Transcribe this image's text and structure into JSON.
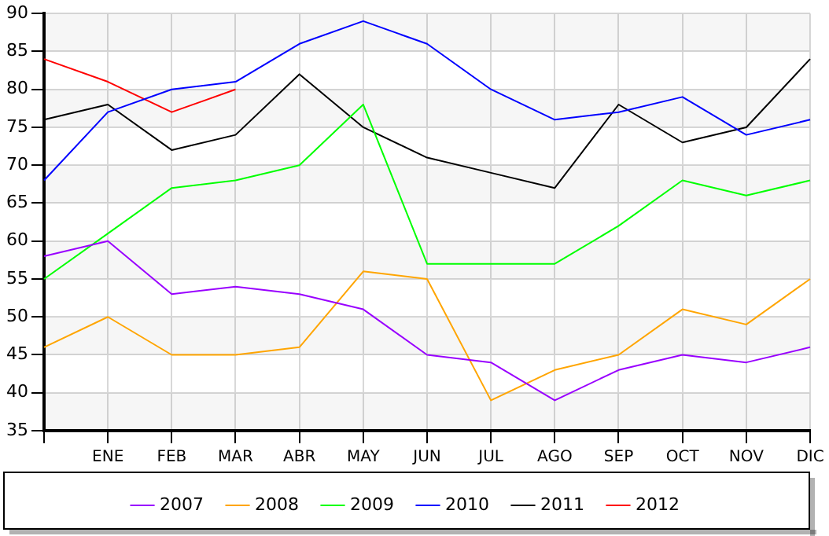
{
  "chart_data": {
    "type": "line",
    "categories": [
      null,
      "ENE",
      "FEB",
      "MAR",
      "ABR",
      "MAY",
      "JUN",
      "JUL",
      "AGO",
      "SEP",
      "OCT",
      "NOV",
      "DIC"
    ],
    "series": [
      {
        "name": "2007",
        "color": "#9900ff",
        "values": [
          58,
          60,
          53,
          54,
          53,
          51,
          45,
          44,
          39,
          43,
          45,
          44,
          46
        ]
      },
      {
        "name": "2008",
        "color": "#ffa500",
        "values": [
          46,
          50,
          45,
          45,
          46,
          56,
          55,
          39,
          43,
          45,
          51,
          49,
          55
        ]
      },
      {
        "name": "2009",
        "color": "#00ff00",
        "values": [
          55,
          61,
          67,
          68,
          70,
          78,
          57,
          57,
          57,
          62,
          68,
          66,
          68
        ]
      },
      {
        "name": "2010",
        "color": "#0000ff",
        "values": [
          68,
          77,
          80,
          81,
          86,
          89,
          86,
          80,
          76,
          77,
          79,
          74,
          76
        ]
      },
      {
        "name": "2011",
        "color": "#000000",
        "values": [
          76,
          78,
          72,
          74,
          82,
          75,
          71,
          69,
          67,
          78,
          73,
          75,
          84
        ]
      },
      {
        "name": "2012",
        "color": "#ff0000",
        "values": [
          84,
          81,
          77,
          80,
          null,
          null,
          null,
          null,
          null,
          null,
          null,
          null,
          null
        ]
      }
    ],
    "ylim": [
      35,
      90
    ],
    "yticks": [
      35,
      40,
      45,
      50,
      55,
      60,
      65,
      70,
      75,
      80,
      85,
      90
    ],
    "grid": true,
    "legend": "bottom",
    "marker": "none",
    "line_style": "solid"
  }
}
